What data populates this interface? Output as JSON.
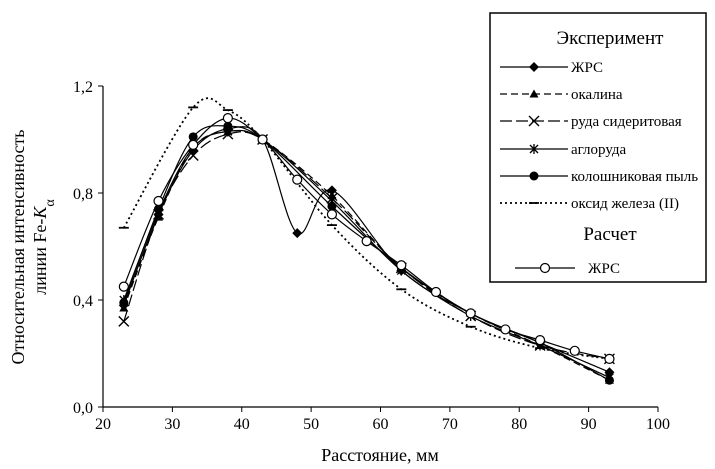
{
  "chart_data": {
    "type": "line",
    "xlabel": "Расстояние, мм",
    "ylabel_line1": "Относительная интенсивность",
    "ylabel_line2": "линии Fe-",
    "ylabel_italic": "K",
    "ylabel_sub": "α",
    "xlim": [
      20,
      100
    ],
    "ylim": [
      0.0,
      1.2
    ],
    "x_ticks": [
      20,
      30,
      40,
      50,
      60,
      70,
      80,
      90,
      100
    ],
    "x_tick_labels": [
      "20",
      "30",
      "40",
      "50",
      "60",
      "70",
      "80",
      "90",
      "100"
    ],
    "y_ticks": [
      0.0,
      0.4,
      0.8,
      1.2
    ],
    "y_tick_labels": [
      "0,0",
      "0,4",
      "0,8",
      "1,2"
    ],
    "grid": false,
    "legend_position": "top-right",
    "legend": {
      "experiment_title": "Эксперимент",
      "calculation_title": "Расчет"
    },
    "series": [
      {
        "name": "ЖРС",
        "group": "experiment",
        "marker": "diamond",
        "dash": "solid",
        "color": "#000000",
        "points": [
          [
            23,
            0.38
          ],
          [
            28,
            0.72
          ],
          [
            33,
            0.96
          ],
          [
            38,
            1.04
          ],
          [
            43,
            1.0
          ],
          [
            48,
            0.65
          ],
          [
            53,
            0.81
          ],
          [
            63,
            0.51
          ],
          [
            73,
            0.35
          ],
          [
            83,
            0.24
          ],
          [
            93,
            0.13
          ]
        ]
      },
      {
        "name": "окалина",
        "group": "experiment",
        "marker": "triangle",
        "dash": "dash",
        "color": "#000000",
        "points": [
          [
            23,
            0.37
          ],
          [
            28,
            0.71
          ],
          [
            33,
            0.97
          ],
          [
            38,
            1.03
          ],
          [
            43,
            1.0
          ],
          [
            53,
            0.79
          ],
          [
            63,
            0.52
          ],
          [
            73,
            0.35
          ],
          [
            83,
            0.23
          ],
          [
            93,
            0.1
          ]
        ]
      },
      {
        "name": "руда сидеритовая",
        "group": "experiment",
        "marker": "x",
        "dash": "longdash",
        "color": "#000000",
        "points": [
          [
            23,
            0.32
          ],
          [
            28,
            0.72
          ],
          [
            33,
            0.94
          ],
          [
            38,
            1.02
          ],
          [
            43,
            1.0
          ],
          [
            53,
            0.78
          ],
          [
            63,
            0.52
          ],
          [
            73,
            0.34
          ],
          [
            83,
            0.23
          ],
          [
            93,
            0.18
          ]
        ]
      },
      {
        "name": "аглоруда",
        "group": "experiment",
        "marker": "star",
        "dash": "solid",
        "color": "#000000",
        "points": [
          [
            23,
            0.4
          ],
          [
            28,
            0.73
          ],
          [
            33,
            0.97
          ],
          [
            38,
            1.03
          ],
          [
            43,
            1.0
          ],
          [
            53,
            0.77
          ],
          [
            63,
            0.51
          ],
          [
            73,
            0.34
          ],
          [
            83,
            0.23
          ],
          [
            93,
            0.11
          ]
        ]
      },
      {
        "name": "колошниковая пыль",
        "group": "experiment",
        "marker": "circle-filled",
        "dash": "solid",
        "color": "#000000",
        "points": [
          [
            23,
            0.39
          ],
          [
            28,
            0.74
          ],
          [
            33,
            1.01
          ],
          [
            38,
            1.05
          ],
          [
            43,
            1.0
          ],
          [
            53,
            0.75
          ],
          [
            63,
            0.52
          ],
          [
            73,
            0.35
          ],
          [
            83,
            0.24
          ],
          [
            93,
            0.1
          ]
        ]
      },
      {
        "name": "оксид железа (II)",
        "group": "experiment",
        "marker": "hbar",
        "dash": "dot",
        "color": "#000000",
        "points": [
          [
            23,
            0.67
          ],
          [
            33,
            1.12
          ],
          [
            38,
            1.11
          ],
          [
            43,
            1.0
          ],
          [
            53,
            0.68
          ],
          [
            63,
            0.44
          ],
          [
            73,
            0.3
          ],
          [
            83,
            0.22
          ],
          [
            93,
            0.18
          ]
        ]
      },
      {
        "name": "ЖРС",
        "group": "calculation",
        "marker": "circle-open",
        "dash": "solid",
        "color": "#000000",
        "points": [
          [
            23,
            0.45
          ],
          [
            28,
            0.77
          ],
          [
            33,
            0.98
          ],
          [
            38,
            1.08
          ],
          [
            43,
            1.0
          ],
          [
            48,
            0.85
          ],
          [
            53,
            0.72
          ],
          [
            58,
            0.62
          ],
          [
            63,
            0.53
          ],
          [
            68,
            0.43
          ],
          [
            73,
            0.35
          ],
          [
            78,
            0.29
          ],
          [
            83,
            0.25
          ],
          [
            88,
            0.21
          ],
          [
            93,
            0.18
          ]
        ]
      }
    ]
  }
}
